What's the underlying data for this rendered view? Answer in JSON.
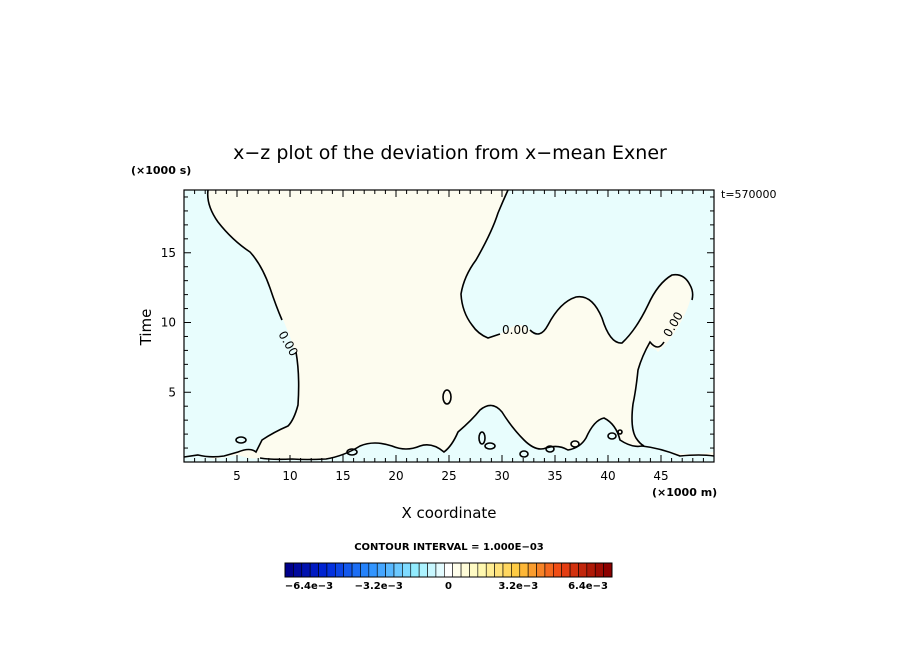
{
  "chart_data": {
    "type": "contour",
    "title": "x−z plot of the deviation from x−mean Exner",
    "xlabel": "X coordinate",
    "ylabel": "Time",
    "x_units": "(×1000 m)",
    "y_units": "(×1000 s)",
    "time_stamp": "t=570000",
    "xlim": [
      0,
      50
    ],
    "ylim": [
      0,
      19.5
    ],
    "x_ticks": [
      5,
      10,
      15,
      20,
      25,
      30,
      35,
      40,
      45
    ],
    "y_ticks": [
      5,
      10,
      15
    ],
    "contour_interval_label": "CONTOUR INTERVAL = 1.000E−03",
    "contour_labels": [
      "0.00",
      "0.00",
      "0.00"
    ],
    "colors": {
      "negative_fill": "#e8fdfd",
      "positive_fill": "#fdfcef",
      "line": "#000000"
    },
    "colorbar": {
      "min": -0.0075,
      "max": 0.0075,
      "step": 0.0004,
      "tick_labels": [
        "−6.4e−3",
        "−3.2e−3",
        "0",
        "3.2e−3",
        "6.4e−3"
      ],
      "tick_values": [
        -0.0064,
        -0.0032,
        0,
        0.0032,
        0.0064
      ]
    }
  }
}
